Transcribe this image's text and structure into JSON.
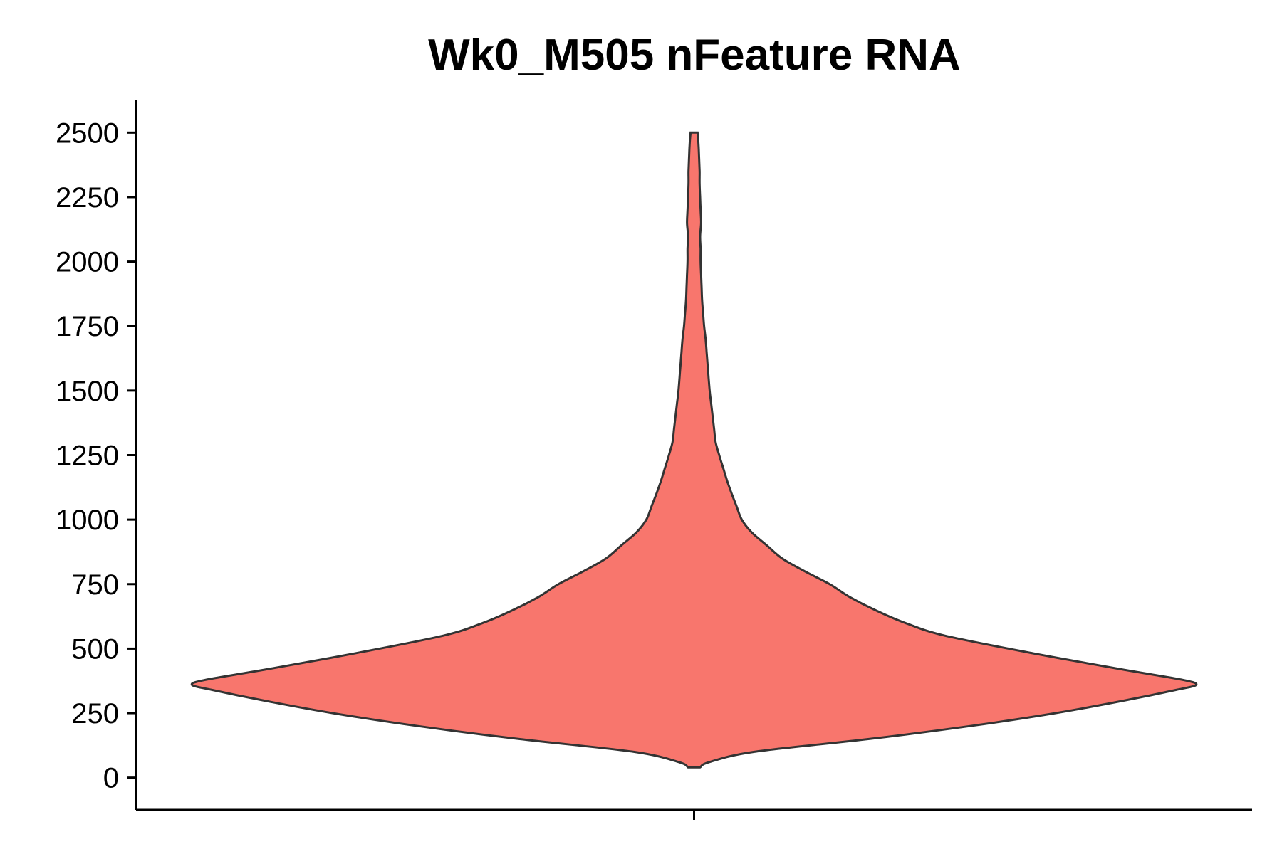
{
  "chart_data": {
    "type": "violin",
    "title": "Wk0_M505 nFeature RNA",
    "xlabel": "",
    "ylabel": "",
    "ylim": [
      -125,
      2625
    ],
    "yticks": [
      0,
      250,
      500,
      750,
      1000,
      1250,
      1500,
      1750,
      2000,
      2250,
      2500
    ],
    "categories": [
      ""
    ],
    "fill_color": "#F8766D",
    "outline_color": "#333333",
    "grid": false,
    "legend": "none",
    "density_profile": {
      "y": [
        40,
        60,
        100,
        150,
        200,
        250,
        300,
        340,
        360,
        380,
        420,
        480,
        550,
        600,
        650,
        700,
        750,
        800,
        850,
        900,
        950,
        1000,
        1050,
        1100,
        1150,
        1200,
        1250,
        1300,
        1350,
        1400,
        1450,
        1500,
        1550,
        1600,
        1650,
        1700,
        1750,
        1800,
        1850,
        1900,
        1950,
        2000,
        2050,
        2100,
        2150,
        2200,
        2250,
        2300,
        2350,
        2400,
        2450,
        2500
      ],
      "half_width": [
        0.012,
        0.03,
        0.12,
        0.35,
        0.55,
        0.72,
        0.86,
        0.96,
        1.0,
        0.97,
        0.85,
        0.68,
        0.5,
        0.42,
        0.36,
        0.31,
        0.27,
        0.22,
        0.175,
        0.145,
        0.115,
        0.095,
        0.085,
        0.075,
        0.066,
        0.058,
        0.05,
        0.043,
        0.04,
        0.037,
        0.034,
        0.031,
        0.029,
        0.027,
        0.025,
        0.023,
        0.02,
        0.018,
        0.016,
        0.015,
        0.014,
        0.013,
        0.013,
        0.012,
        0.014,
        0.013,
        0.012,
        0.011,
        0.011,
        0.01,
        0.009,
        0.007
      ]
    }
  }
}
